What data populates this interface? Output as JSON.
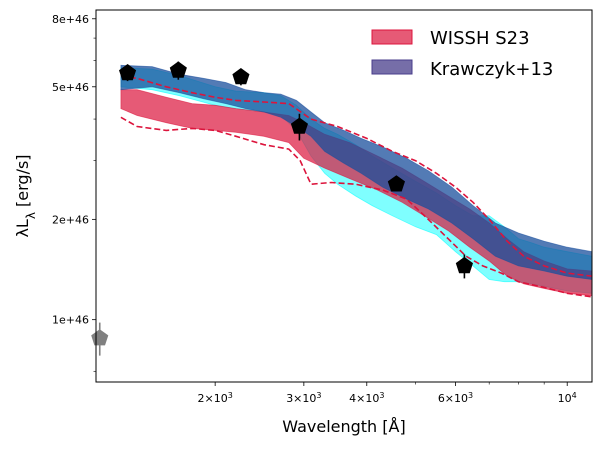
{
  "chart_data": {
    "type": "line",
    "title": "",
    "xlabel": "Wavelength [Å]",
    "ylabel": "λL_λ [erg/s]",
    "xscale": "log",
    "yscale": "log",
    "xlim": [
      1160,
      11200
    ],
    "ylim": [
      6.5e+45,
      8.5e+46
    ],
    "x_ticks": [
      {
        "value": 2000,
        "mant": "2×10",
        "exp": "3"
      },
      {
        "value": 3000,
        "mant": "3×10",
        "exp": "3"
      },
      {
        "value": 4000,
        "mant": "4×10",
        "exp": "3"
      },
      {
        "value": 6000,
        "mant": "6×10",
        "exp": "3"
      },
      {
        "value": 10000,
        "mant": "10",
        "exp": "4"
      }
    ],
    "y_ticks": [
      {
        "value": 1e+46,
        "label": "1e+46"
      },
      {
        "value": 2e+46,
        "label": "2e+46"
      },
      {
        "value": 5e+46,
        "label": "5e+46"
      },
      {
        "value": 8e+46,
        "label": "8e+46"
      }
    ],
    "legend": {
      "position": "top-right",
      "items": [
        {
          "label": "WISSH S23",
          "color": "#dc143c"
        },
        {
          "label": "Krawczyk+13",
          "color": "#483d8b"
        }
      ]
    },
    "bands": [
      {
        "name": "cyan-band",
        "color": "#00ffff",
        "opacity": 0.5,
        "x": [
          1300,
          1500,
          1700,
          2000,
          2200,
          2500,
          2700,
          2900,
          3100,
          3300,
          3500,
          3800,
          4100,
          4500,
          5000,
          5500,
          6000,
          6500,
          7000,
          7500,
          8000,
          8500,
          9000,
          10000,
          11200
        ],
        "upper": [
          5.7e+46,
          5.65e+46,
          5.4e+46,
          5e+46,
          4.85e+46,
          4.8e+46,
          4.7e+46,
          4.4e+46,
          4e+46,
          3.75e+46,
          3.6e+46,
          3.35e+46,
          3.1e+46,
          2.85e+46,
          2.6e+46,
          2.4e+46,
          2.2e+46,
          2.05e+46,
          2.05e+46,
          1.9e+46,
          1.75e+46,
          1.7e+46,
          1.65e+46,
          1.6e+46,
          1.55e+46
        ],
        "lower": [
          5e+46,
          4.9e+46,
          4.7e+46,
          4.4e+46,
          4.3e+46,
          4.2e+46,
          4.1e+46,
          3.7e+46,
          3.1e+46,
          2.75e+46,
          2.55e+46,
          2.35e+46,
          2.2e+46,
          2.05e+46,
          1.9e+46,
          1.8e+46,
          1.6e+46,
          1.45e+46,
          1.32e+46,
          1.3e+46,
          1.3e+46,
          1.28e+46,
          1.26e+46,
          1.22e+46,
          1.2e+46
        ]
      },
      {
        "name": "wissh-band",
        "color": "#dc143c",
        "opacity": 0.7,
        "x": [
          1300,
          1400,
          1600,
          1800,
          2000,
          2200,
          2500,
          2800,
          3000,
          3300,
          3700,
          4200,
          4700,
          5200,
          5800,
          6400,
          7000,
          7600,
          8200,
          9000,
          10000,
          11200
        ],
        "upper": [
          4.9e+46,
          4.9e+46,
          4.65e+46,
          4.45e+46,
          4.4e+46,
          4.3e+46,
          4.2e+46,
          4.1e+46,
          3.9e+46,
          3.6e+46,
          3.4e+46,
          3.1e+46,
          2.85e+46,
          2.6e+46,
          2.35e+46,
          2.15e+46,
          1.95e+46,
          1.75e+46,
          1.6e+46,
          1.5e+46,
          1.42e+46,
          1.4e+46
        ],
        "lower": [
          4.3e+46,
          4.1e+46,
          3.9e+46,
          3.75e+46,
          3.7e+46,
          3.65e+46,
          3.55e+46,
          3.4e+46,
          3.05e+46,
          2.85e+46,
          2.65e+46,
          2.45e+46,
          2.25e+46,
          2.05e+46,
          1.85e+46,
          1.65e+46,
          1.5e+46,
          1.35e+46,
          1.28e+46,
          1.24e+46,
          1.2e+46,
          1.18e+46
        ]
      },
      {
        "name": "krawczyk-band",
        "color": "#1a4f9c",
        "opacity": 0.75,
        "x": [
          1300,
          1500,
          1700,
          1900,
          2100,
          2300,
          2500,
          2700,
          2900,
          3100,
          3300,
          3600,
          3900,
          4300,
          4800,
          5300,
          5900,
          6500,
          7200,
          8000,
          9000,
          10000,
          11200
        ],
        "upper": [
          5.8e+46,
          5.75e+46,
          5.45e+46,
          5.3e+46,
          5.15e+46,
          4.9e+46,
          4.8e+46,
          4.75e+46,
          4.55e+46,
          4.2e+46,
          3.9e+46,
          3.7e+46,
          3.5e+46,
          3.3e+46,
          3.05e+46,
          2.8e+46,
          2.5e+46,
          2.2e+46,
          1.95e+46,
          1.82e+46,
          1.72e+46,
          1.65e+46,
          1.6e+46
        ],
        "lower": [
          4.9e+46,
          5e+46,
          4.8e+46,
          4.6e+46,
          4.45e+46,
          4.3e+46,
          4.2e+46,
          4.05e+46,
          3.8e+46,
          3.55e+46,
          3.2e+46,
          2.95e+46,
          2.75e+46,
          2.5e+46,
          2.3e+46,
          2.15e+46,
          1.95e+46,
          1.75e+46,
          1.55e+46,
          1.45e+46,
          1.4e+46,
          1.35e+46,
          1.32e+46
        ]
      }
    ],
    "dashed_lines": [
      {
        "name": "wissh-upper-dashed",
        "color": "#dc143c",
        "x": [
          1300,
          1400,
          1600,
          1800,
          2000,
          2200,
          2500,
          2800,
          3100,
          3500,
          4000,
          4500,
          5000,
          5500,
          6000,
          6500,
          7000,
          7600,
          8200,
          9000,
          10000,
          11200
        ],
        "y": [
          5.4e+46,
          5.3e+46,
          5e+46,
          4.8e+46,
          4.65e+46,
          4.55e+46,
          4.5e+46,
          4.45e+46,
          4e+46,
          3.8e+46,
          3.5e+46,
          3.2e+46,
          3e+46,
          2.75e+46,
          2.5e+46,
          2.25e+46,
          2e+46,
          1.72e+46,
          1.55e+46,
          1.45e+46,
          1.38e+46,
          1.35e+46
        ]
      },
      {
        "name": "wissh-lower-dashed",
        "color": "#dc143c",
        "x": [
          1300,
          1400,
          1600,
          1800,
          2000,
          2200,
          2500,
          2800,
          2950,
          3100,
          3400,
          3800,
          4300,
          4800,
          5300,
          5800,
          6300,
          6800,
          7400,
          8000,
          9000,
          10000,
          11200
        ],
        "y": [
          4.05e+46,
          3.8e+46,
          3.7e+46,
          3.75e+46,
          3.7e+46,
          3.55e+46,
          3.35e+46,
          3.25e+46,
          3e+46,
          2.55e+46,
          2.58e+46,
          2.55e+46,
          2.45e+46,
          2.3e+46,
          2e+46,
          1.75e+46,
          1.55e+46,
          1.45e+46,
          1.38e+46,
          1.3e+46,
          1.25e+46,
          1.2e+46,
          1.17e+46
        ]
      }
    ],
    "points": [
      {
        "name": "obs-point-1",
        "x": 1340,
        "y": 5.5e+46,
        "yerr": 3e+45,
        "color": "#000000"
      },
      {
        "name": "obs-point-2",
        "x": 1690,
        "y": 5.6e+46,
        "yerr": 3.5e+45,
        "color": "#000000"
      },
      {
        "name": "obs-point-3",
        "x": 2250,
        "y": 5.35e+46,
        "yerr": 3e+45,
        "color": "#000000"
      },
      {
        "name": "obs-point-4",
        "x": 2940,
        "y": 3.8e+46,
        "yerr": 3.5e+45,
        "color": "#000000"
      },
      {
        "name": "obs-point-5",
        "x": 4580,
        "y": 2.55e+46,
        "yerr": 1.2e+45,
        "color": "#000000"
      },
      {
        "name": "obs-point-6",
        "x": 6250,
        "y": 1.45e+46,
        "yerr": 1.2e+45,
        "color": "#000000"
      },
      {
        "name": "grey-point",
        "x": 1180,
        "y": 8.8e+45,
        "yerr": 1e+45,
        "color": "#808080"
      }
    ]
  }
}
